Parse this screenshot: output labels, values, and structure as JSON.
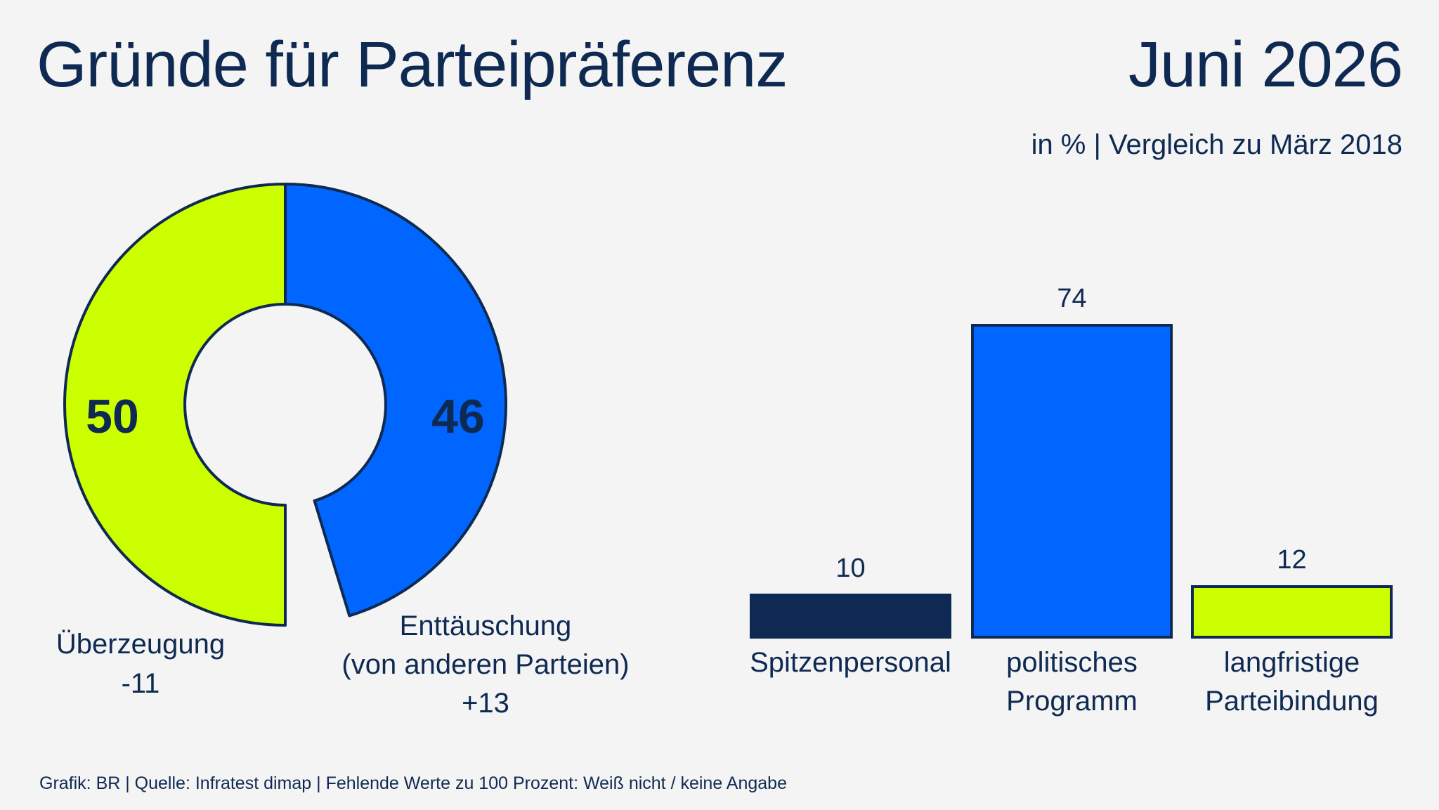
{
  "header": {
    "title": "Gründe für Parteipräferenz",
    "date": "Juni 2026",
    "subtitle": "in % | Vergleich zu März 2018"
  },
  "footer": {
    "text": "Grafik: BR | Quelle: Infratest dimap | Fehlende Werte zu 100 Prozent: Weiß nicht / keine Angabe"
  },
  "colors": {
    "navy": "#0f2a52",
    "blue": "#0066ff",
    "lime": "#ccff00",
    "background": "#f4f4f4"
  },
  "chart_data": [
    {
      "type": "pie",
      "variant": "donut",
      "slices": [
        {
          "label": "Überzeugung",
          "value": 50,
          "change": "-11",
          "color": "#ccff00"
        },
        {
          "label": "Enttäuschung (von anderen Parteien)",
          "label_lines": [
            "Enttäuschung",
            "(von anderen Parteien)"
          ],
          "value": 46,
          "change": "+13",
          "color": "#0066ff"
        }
      ],
      "total": 100
    },
    {
      "type": "bar",
      "categories": [
        "Spitzenpersonal",
        "politisches Programm",
        "langfristige Parteibindung"
      ],
      "category_lines": [
        [
          "Spitzenpersonal"
        ],
        [
          "politisches",
          "Programm"
        ],
        [
          "langfristige",
          "Parteibindung"
        ]
      ],
      "values": [
        10,
        74,
        12
      ],
      "colors": [
        "#0f2a52",
        "#0066ff",
        "#ccff00"
      ]
    }
  ]
}
